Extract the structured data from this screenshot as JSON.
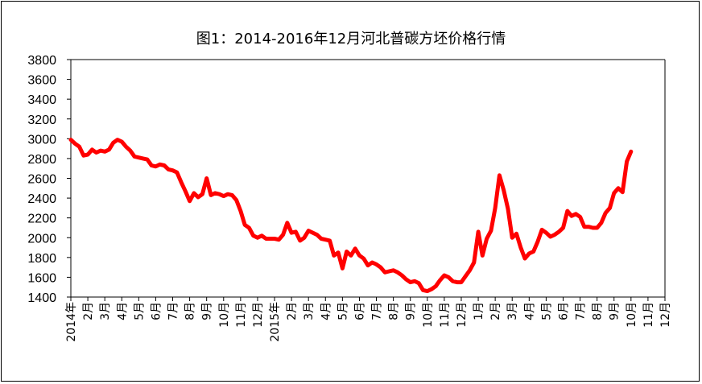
{
  "chart_data": {
    "type": "line",
    "title": "图1：2014-2016年12月河北普碳方坯价格行情",
    "xlabel": "",
    "ylabel": "",
    "ylim": [
      1400,
      3800
    ],
    "yticks": [
      1400,
      1600,
      1800,
      2000,
      2200,
      2400,
      2600,
      2800,
      3000,
      3200,
      3400,
      3600,
      3800
    ],
    "xlim": [
      0,
      35
    ],
    "xtick_labels": [
      {
        "x": 0,
        "label": "2014年"
      },
      {
        "x": 1,
        "label": "2月"
      },
      {
        "x": 2,
        "label": "3月"
      },
      {
        "x": 3,
        "label": "4月"
      },
      {
        "x": 4,
        "label": "5月"
      },
      {
        "x": 5,
        "label": "6月"
      },
      {
        "x": 6,
        "label": "7月"
      },
      {
        "x": 7,
        "label": "8月"
      },
      {
        "x": 8,
        "label": "9月"
      },
      {
        "x": 9,
        "label": "10月"
      },
      {
        "x": 10,
        "label": "11月"
      },
      {
        "x": 11,
        "label": "12月"
      },
      {
        "x": 12,
        "label": "2015年"
      },
      {
        "x": 13,
        "label": "2月"
      },
      {
        "x": 14,
        "label": "3月"
      },
      {
        "x": 15,
        "label": "4月"
      },
      {
        "x": 16,
        "label": "5月"
      },
      {
        "x": 17,
        "label": "6月"
      },
      {
        "x": 18,
        "label": "7月"
      },
      {
        "x": 19,
        "label": "8月"
      },
      {
        "x": 20,
        "label": "9月"
      },
      {
        "x": 21,
        "label": "10月"
      },
      {
        "x": 22,
        "label": "11月"
      },
      {
        "x": 23,
        "label": "12月"
      },
      {
        "x": 24,
        "label": "1月"
      },
      {
        "x": 25,
        "label": "2月"
      },
      {
        "x": 26,
        "label": "3月"
      },
      {
        "x": 27,
        "label": "4月"
      },
      {
        "x": 28,
        "label": "5月"
      },
      {
        "x": 29,
        "label": "6月"
      },
      {
        "x": 30,
        "label": "7月"
      },
      {
        "x": 31,
        "label": "8月"
      },
      {
        "x": 32,
        "label": "9月"
      },
      {
        "x": 33,
        "label": "10月"
      },
      {
        "x": 34,
        "label": "11月"
      },
      {
        "x": 35,
        "label": "12月"
      }
    ],
    "series": [
      {
        "color": "#ff0000",
        "points": [
          [
            0.0,
            2990
          ],
          [
            0.25,
            2950
          ],
          [
            0.5,
            2920
          ],
          [
            0.75,
            2830
          ],
          [
            1.0,
            2840
          ],
          [
            1.25,
            2890
          ],
          [
            1.5,
            2860
          ],
          [
            1.75,
            2880
          ],
          [
            2.0,
            2870
          ],
          [
            2.25,
            2890
          ],
          [
            2.5,
            2960
          ],
          [
            2.75,
            2990
          ],
          [
            3.0,
            2970
          ],
          [
            3.25,
            2920
          ],
          [
            3.5,
            2880
          ],
          [
            3.75,
            2820
          ],
          [
            4.0,
            2810
          ],
          [
            4.25,
            2800
          ],
          [
            4.5,
            2790
          ],
          [
            4.75,
            2730
          ],
          [
            5.0,
            2720
          ],
          [
            5.25,
            2740
          ],
          [
            5.5,
            2730
          ],
          [
            5.75,
            2690
          ],
          [
            6.0,
            2680
          ],
          [
            6.25,
            2660
          ],
          [
            6.5,
            2560
          ],
          [
            6.75,
            2470
          ],
          [
            7.0,
            2370
          ],
          [
            7.25,
            2450
          ],
          [
            7.5,
            2410
          ],
          [
            7.75,
            2440
          ],
          [
            8.0,
            2600
          ],
          [
            8.25,
            2430
          ],
          [
            8.5,
            2450
          ],
          [
            8.75,
            2440
          ],
          [
            9.0,
            2420
          ],
          [
            9.25,
            2440
          ],
          [
            9.5,
            2430
          ],
          [
            9.75,
            2380
          ],
          [
            10.0,
            2270
          ],
          [
            10.25,
            2130
          ],
          [
            10.5,
            2100
          ],
          [
            10.75,
            2020
          ],
          [
            11.0,
            2000
          ],
          [
            11.25,
            2020
          ],
          [
            11.5,
            1990
          ],
          [
            11.75,
            1990
          ],
          [
            12.0,
            1990
          ],
          [
            12.25,
            1980
          ],
          [
            12.5,
            2030
          ],
          [
            12.75,
            2150
          ],
          [
            13.0,
            2050
          ],
          [
            13.25,
            2060
          ],
          [
            13.5,
            1970
          ],
          [
            13.75,
            2000
          ],
          [
            14.0,
            2070
          ],
          [
            14.25,
            2050
          ],
          [
            14.5,
            2030
          ],
          [
            14.75,
            1990
          ],
          [
            15.0,
            1980
          ],
          [
            15.25,
            1970
          ],
          [
            15.5,
            1820
          ],
          [
            15.75,
            1850
          ],
          [
            16.0,
            1690
          ],
          [
            16.25,
            1860
          ],
          [
            16.5,
            1820
          ],
          [
            16.75,
            1890
          ],
          [
            17.0,
            1820
          ],
          [
            17.25,
            1790
          ],
          [
            17.5,
            1720
          ],
          [
            17.75,
            1750
          ],
          [
            18.0,
            1730
          ],
          [
            18.25,
            1700
          ],
          [
            18.5,
            1650
          ],
          [
            18.75,
            1660
          ],
          [
            19.0,
            1670
          ],
          [
            19.25,
            1650
          ],
          [
            19.5,
            1620
          ],
          [
            19.75,
            1580
          ],
          [
            20.0,
            1550
          ],
          [
            20.25,
            1560
          ],
          [
            20.5,
            1540
          ],
          [
            20.75,
            1470
          ],
          [
            21.0,
            1460
          ],
          [
            21.25,
            1480
          ],
          [
            21.5,
            1510
          ],
          [
            21.75,
            1570
          ],
          [
            22.0,
            1620
          ],
          [
            22.25,
            1600
          ],
          [
            22.5,
            1560
          ],
          [
            22.75,
            1550
          ],
          [
            23.0,
            1550
          ],
          [
            23.25,
            1610
          ],
          [
            23.5,
            1670
          ],
          [
            23.75,
            1750
          ],
          [
            24.0,
            2060
          ],
          [
            24.25,
            1820
          ],
          [
            24.5,
            1990
          ],
          [
            24.75,
            2070
          ],
          [
            25.0,
            2300
          ],
          [
            25.25,
            2630
          ],
          [
            25.5,
            2480
          ],
          [
            25.75,
            2290
          ],
          [
            26.0,
            2000
          ],
          [
            26.25,
            2040
          ],
          [
            26.5,
            1900
          ],
          [
            26.75,
            1790
          ],
          [
            27.0,
            1840
          ],
          [
            27.25,
            1860
          ],
          [
            27.5,
            1960
          ],
          [
            27.75,
            2080
          ],
          [
            28.0,
            2050
          ],
          [
            28.25,
            2010
          ],
          [
            28.5,
            2030
          ],
          [
            28.75,
            2060
          ],
          [
            29.0,
            2100
          ],
          [
            29.25,
            2270
          ],
          [
            29.5,
            2220
          ],
          [
            29.75,
            2240
          ],
          [
            30.0,
            2210
          ],
          [
            30.25,
            2110
          ],
          [
            30.5,
            2110
          ],
          [
            30.75,
            2100
          ],
          [
            31.0,
            2100
          ],
          [
            31.25,
            2150
          ],
          [
            31.5,
            2250
          ],
          [
            31.75,
            2300
          ],
          [
            32.0,
            2450
          ],
          [
            32.25,
            2500
          ],
          [
            32.5,
            2460
          ],
          [
            32.75,
            2770
          ],
          [
            33.0,
            2870
          ]
        ]
      }
    ],
    "grid": false,
    "legend": "none"
  }
}
